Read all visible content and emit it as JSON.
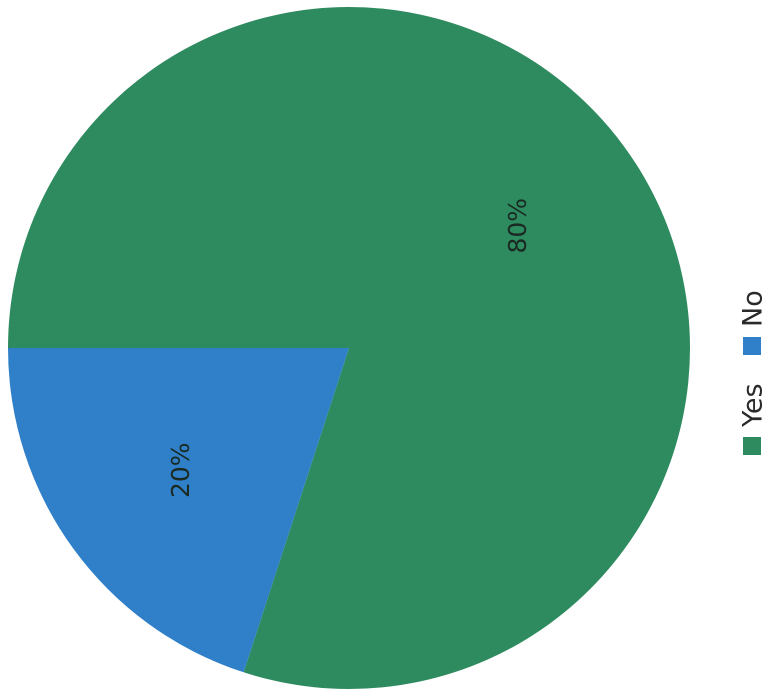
{
  "chart_data": {
    "type": "pie",
    "title": "",
    "orientation": "rotated-90-counterclockwise",
    "legend_position": "right",
    "slices": [
      {
        "label": "Yes",
        "value": 80,
        "value_label": "80%",
        "color": "#2e8b5f"
      },
      {
        "label": "No",
        "value": 20,
        "value_label": "20%",
        "color": "#2f80c9"
      }
    ]
  }
}
